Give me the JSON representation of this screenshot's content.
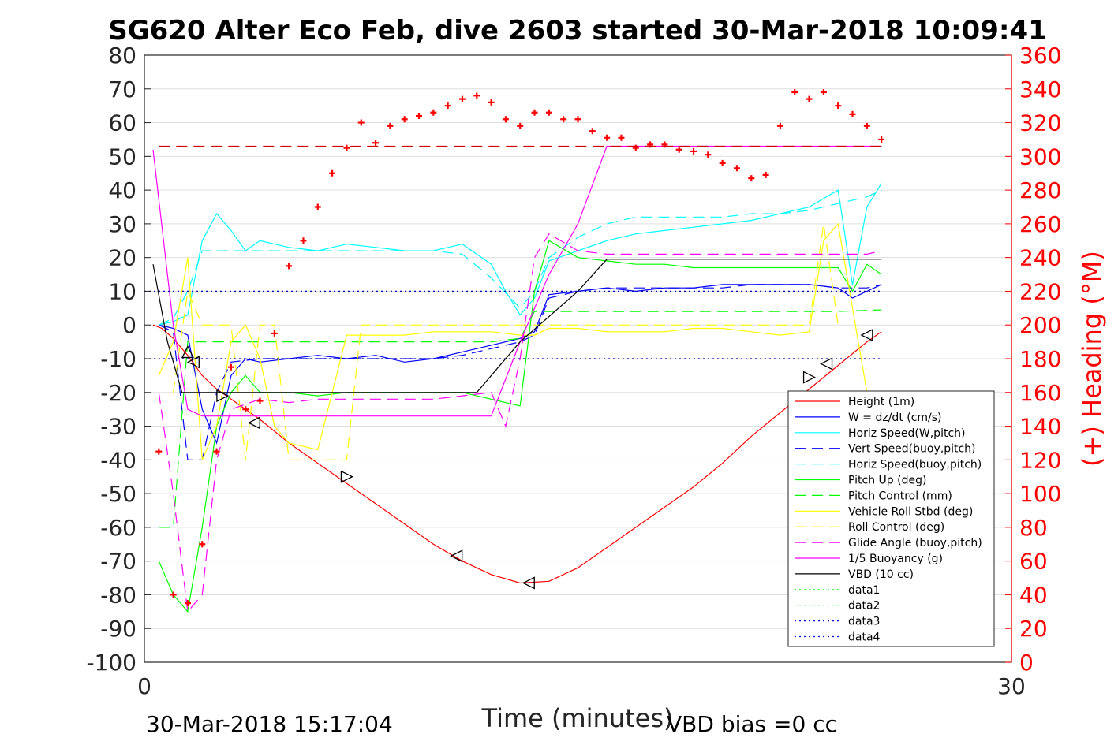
{
  "chart_data": {
    "type": "line",
    "title": "SG620 Alter Eco Feb, dive 2603 started 30-Mar-2018 10:09:41",
    "xlabel": "Time (minutes)",
    "ylabel_right": "(+) Heading (°M)",
    "xlim": [
      0,
      30
    ],
    "ylim": [
      -100,
      80
    ],
    "ylim_right": [
      0,
      360
    ],
    "xticks": [
      "0",
      "30"
    ],
    "yticks": [
      "80",
      "70",
      "60",
      "50",
      "40",
      "30",
      "20",
      "10",
      "0",
      "-10",
      "-20",
      "-30",
      "-40",
      "-50",
      "-60",
      "-70",
      "-80",
      "-90",
      "-100"
    ],
    "yticks_right": [
      "360",
      "340",
      "320",
      "300",
      "280",
      "260",
      "240",
      "220",
      "200",
      "180",
      "160",
      "140",
      "120",
      "100",
      "80",
      "60",
      "40",
      "20",
      "0"
    ],
    "grid": true,
    "legend_position": "lower-right",
    "footer_left": "30-Mar-2018 15:17:04",
    "footer_right": "VBD bias =0 cc",
    "colors": {
      "height": "#ff0000",
      "w": "#0000ff",
      "horiz_speed": "#00ffff",
      "vert_speed_buoy": "#0000ff",
      "horiz_speed_buoy": "#00ffff",
      "pitch_up": "#00ff00",
      "pitch_control": "#00ff00",
      "roll": "#ffff00",
      "roll_control": "#ffff00",
      "glide_angle": "#ff00ff",
      "buoyancy": "#ff00ff",
      "vbd": "#000000",
      "heading": "#ff0000"
    },
    "legend": [
      {
        "label": "Height (1m)",
        "color": "#ff0000",
        "style": "solid"
      },
      {
        "label": "W = dz/dt (cm/s)",
        "color": "#0000ff",
        "style": "solid"
      },
      {
        "label": "Horiz Speed(W,pitch)",
        "color": "#00ffff",
        "style": "solid"
      },
      {
        "label": "Vert Speed(buoy,pitch)",
        "color": "#0000ff",
        "style": "dashed"
      },
      {
        "label": "Horiz Speed(buoy,pitch)",
        "color": "#00ffff",
        "style": "dashed"
      },
      {
        "label": "Pitch Up (deg)",
        "color": "#00ff00",
        "style": "solid"
      },
      {
        "label": "Pitch Control (mm)",
        "color": "#00ff00",
        "style": "dashed"
      },
      {
        "label": "Vehicle Roll Stbd (deg)",
        "color": "#ffff00",
        "style": "solid"
      },
      {
        "label": "Roll Control (deg)",
        "color": "#ffff00",
        "style": "dashed"
      },
      {
        "label": "Glide Angle (buoy,pitch)",
        "color": "#ff00ff",
        "style": "dashed"
      },
      {
        "label": "1/5 Buoyancy (g)",
        "color": "#ff00ff",
        "style": "solid"
      },
      {
        "label": "VBD (10 cc)",
        "color": "#000000",
        "style": "solid"
      },
      {
        "label": "data1",
        "color": "#00ff00",
        "style": "dotted"
      },
      {
        "label": "data2",
        "color": "#00ff00",
        "style": "dotted"
      },
      {
        "label": "data3",
        "color": "#0000ff",
        "style": "dotted"
      },
      {
        "label": "data4",
        "color": "#0000ff",
        "style": "dotted"
      }
    ],
    "series": [
      {
        "key": "height",
        "axis": "left",
        "style": "solid",
        "x": [
          0.3,
          0.6,
          1.0,
          1.5,
          2.0,
          2.5,
          3.0,
          4.0,
          5.0,
          6.0,
          7.0,
          8.0,
          9.0,
          10.0,
          11.0,
          12.0,
          13.0,
          14.0,
          15.0,
          16.0,
          17.0,
          18.0,
          19.0,
          20.0,
          21.0,
          22.0,
          23.0,
          24.0,
          25.0,
          25.5
        ],
        "y": [
          0,
          -1,
          -4,
          -9,
          -15,
          -19,
          -22,
          -28,
          -35,
          -41,
          -47,
          -53,
          -59,
          -65,
          -70,
          -74,
          -76.5,
          -76,
          -72,
          -66,
          -60,
          -54,
          -48,
          -41,
          -33,
          -26,
          -19,
          -12,
          -5,
          -2
        ]
      },
      {
        "key": "w",
        "axis": "left",
        "style": "solid",
        "x": [
          0.5,
          1.0,
          1.5,
          2.0,
          2.5,
          3.0,
          3.5,
          4.0,
          5.0,
          6.0,
          7.0,
          8.0,
          9.0,
          10.0,
          11.0,
          12.0,
          13.0,
          13.5,
          14.0,
          15.0,
          16.0,
          17.0,
          18.0,
          19.0,
          20.0,
          21.0,
          22.0,
          23.0,
          24.0,
          24.5,
          25.0,
          25.5
        ],
        "y": [
          0,
          -1,
          -3,
          -25,
          -35,
          -15,
          -10,
          -11,
          -10,
          -9,
          -10,
          -9,
          -11,
          -10,
          -8,
          -6,
          -4,
          -2,
          9,
          10,
          11,
          10,
          11,
          11,
          12,
          12,
          12,
          12,
          11,
          8,
          10,
          12
        ]
      },
      {
        "key": "horiz_speed",
        "axis": "left",
        "style": "solid",
        "x": [
          0.5,
          1.0,
          1.5,
          2.0,
          2.5,
          3.0,
          3.5,
          4.0,
          5.0,
          6.0,
          7.0,
          8.0,
          9.0,
          10.0,
          11.0,
          12.0,
          12.5,
          13.0,
          13.5,
          14.0,
          15.0,
          16.0,
          17.0,
          18.0,
          19.0,
          20.0,
          21.0,
          22.0,
          23.0,
          24.0,
          24.5,
          25.0,
          25.5
        ],
        "y": [
          0,
          1,
          3,
          25,
          33,
          28,
          22,
          25,
          23,
          22,
          24,
          23,
          22,
          22,
          24,
          18,
          10,
          3,
          8,
          19,
          22,
          25,
          27,
          28,
          29,
          30,
          31,
          33,
          35,
          40,
          12,
          35,
          42
        ]
      },
      {
        "key": "vert_speed_buoy",
        "axis": "left",
        "style": "dashed",
        "x": [
          0.5,
          1.0,
          1.5,
          2.0,
          2.5,
          3.0,
          4.0,
          5.0,
          6.0,
          7.0,
          8.0,
          9.0,
          10.0,
          11.0,
          12.0,
          13.0,
          13.5,
          14.0,
          15.0,
          16.0,
          17.0,
          18.0,
          19.0,
          20.0,
          21.0,
          22.0,
          23.0,
          24.0,
          25.0,
          25.5
        ],
        "y": [
          0,
          -2,
          -40,
          -40,
          -20,
          -11,
          -10,
          -10,
          -10,
          -10,
          -10,
          -10,
          -10,
          -9,
          -7,
          -5,
          -3,
          8,
          10,
          11,
          11,
          11,
          11,
          11,
          12,
          12,
          12,
          11,
          11,
          12
        ]
      },
      {
        "key": "horiz_speed_buoy",
        "axis": "left",
        "style": "dashed",
        "x": [
          0.5,
          1.0,
          1.5,
          2.0,
          2.5,
          3.0,
          4.0,
          5.0,
          6.0,
          7.0,
          8.0,
          9.0,
          10.0,
          11.0,
          12.0,
          13.0,
          13.5,
          14.0,
          15.0,
          16.0,
          17.0,
          18.0,
          19.0,
          20.0,
          21.0,
          22.0,
          23.0,
          24.0,
          25.0,
          25.5
        ],
        "y": [
          0,
          2,
          10,
          22,
          22,
          22,
          22,
          22,
          22,
          22,
          22,
          22,
          22,
          21,
          14,
          5,
          10,
          20,
          26,
          30,
          32,
          32,
          32,
          32,
          33,
          33,
          34,
          36,
          38,
          40
        ]
      },
      {
        "key": "pitch_up",
        "axis": "left",
        "style": "solid",
        "x": [
          0.5,
          1.0,
          1.5,
          2.0,
          2.5,
          3.0,
          3.5,
          4.0,
          5.0,
          6.0,
          7.0,
          8.0,
          9.0,
          10.0,
          11.0,
          12.0,
          13.0,
          13.5,
          14.0,
          15.0,
          16.0,
          17.0,
          18.0,
          19.0,
          20.0,
          21.0,
          22.0,
          23.0,
          24.0,
          24.5,
          25.0,
          25.5
        ],
        "y": [
          -70,
          -80,
          -85,
          -60,
          -30,
          -20,
          -15,
          -20,
          -20,
          -21,
          -20,
          -20,
          -20,
          -20,
          -20,
          -22,
          -24,
          10,
          25,
          20,
          19,
          18,
          18,
          17,
          17,
          17,
          17,
          17,
          17,
          10,
          18,
          15
        ]
      },
      {
        "key": "pitch_control",
        "axis": "left",
        "style": "dashed",
        "x": [
          0.5,
          1.0,
          1.5,
          2.0,
          3.0,
          4.0,
          6.0,
          8.0,
          10.0,
          12.0,
          13.0,
          13.5,
          14.0,
          16.0,
          18.0,
          20.0,
          22.0,
          24.0,
          25.5
        ],
        "y": [
          -60,
          -60,
          -5,
          -5,
          -5,
          -5,
          -5,
          -5,
          -5,
          -5,
          -4,
          4,
          4,
          4,
          4,
          4,
          4,
          4,
          4.5
        ]
      },
      {
        "key": "roll",
        "axis": "left",
        "style": "solid",
        "x": [
          0.5,
          1.0,
          1.5,
          2.0,
          2.5,
          3.0,
          3.5,
          4.0,
          4.5,
          5.0,
          6.0,
          7.0,
          8.0,
          9.0,
          10.0,
          11.0,
          12.0,
          13.0,
          13.5,
          14.0,
          15.0,
          16.0,
          17.0,
          18.0,
          19.0,
          20.0,
          21.0,
          22.0,
          23.0,
          23.5,
          24.0,
          24.5,
          25.0
        ],
        "y": [
          -15,
          -5,
          20,
          -40,
          -30,
          -5,
          0,
          -10,
          -30,
          -35,
          -37,
          -3,
          -3,
          -3,
          -2,
          -2,
          -2,
          -3,
          -3,
          -1,
          -1,
          -2,
          -2,
          -2,
          -1,
          -1,
          -2,
          -3,
          -2,
          25,
          30,
          5,
          -20
        ]
      },
      {
        "key": "roll_control",
        "axis": "left",
        "style": "dashed",
        "x": [
          1.0,
          1.5,
          2.0,
          3.0,
          3.5,
          4.0,
          4.5,
          5.0,
          6.0,
          7.0,
          7.5,
          8.0,
          10.0,
          12.0,
          13.0,
          13.5,
          14.0,
          16.0,
          18.0,
          20.0,
          22.0,
          23.0,
          23.5,
          24.0
        ],
        "y": [
          -20,
          10,
          0,
          0,
          -40,
          0,
          0,
          -40,
          -40,
          -40,
          0,
          0,
          0,
          0,
          0,
          0,
          0,
          0,
          0,
          0,
          0,
          0,
          30,
          0
        ]
      },
      {
        "key": "glide_angle",
        "axis": "left",
        "style": "dashed",
        "x": [
          0.5,
          1.0,
          1.5,
          2.0,
          2.5,
          3.0,
          4.0,
          5.0,
          6.0,
          7.0,
          8.0,
          9.0,
          10.0,
          11.0,
          12.0,
          12.5,
          13.0,
          13.5,
          14.0,
          15.0,
          16.0,
          17.0,
          18.0,
          19.0,
          20.0,
          21.0,
          22.0,
          23.0,
          24.0,
          25.0,
          25.5
        ],
        "y": [
          -20,
          -50,
          -85,
          -80,
          -40,
          -25,
          -22,
          -23,
          -22,
          -22,
          -22,
          -22,
          -22,
          -21,
          -20,
          -30,
          -10,
          20,
          27,
          22,
          21,
          21,
          21,
          21,
          21,
          21,
          21,
          21,
          21,
          21,
          22
        ]
      },
      {
        "key": "buoyancy",
        "axis": "left",
        "style": "solid",
        "x": [
          0.3,
          1.0,
          1.5,
          2.0,
          2.5,
          3.0,
          4.0,
          6.0,
          8.0,
          10.0,
          12.0,
          13.0,
          14.0,
          15.0,
          16.0,
          17.0,
          18.0,
          20.0,
          22.0,
          24.0,
          25.5
        ],
        "y": [
          52,
          0,
          -25,
          -27,
          -27,
          -27,
          -27,
          -27,
          -27,
          -27,
          -27,
          -5,
          15,
          30,
          53,
          53,
          53,
          53,
          53,
          53,
          53
        ]
      },
      {
        "key": "vbd",
        "axis": "left",
        "style": "solid",
        "x": [
          0.3,
          0.8,
          1.3,
          2.0,
          3.0,
          5.0,
          8.0,
          10.0,
          11.5,
          13.0,
          15.0,
          16.0,
          18.0,
          20.0,
          22.0,
          24.0,
          25.5
        ],
        "y": [
          18,
          -5,
          -20,
          -20,
          -20,
          -20,
          -20,
          -20,
          -20,
          -5,
          10,
          19.5,
          19.5,
          19.5,
          19.5,
          19.5,
          19.5
        ]
      },
      {
        "key": "heading",
        "axis": "right",
        "style": "markers",
        "marker": "+",
        "x": [
          0.5,
          1.0,
          1.5,
          2.0,
          2.5,
          3.0,
          3.5,
          4.0,
          4.5,
          5.0,
          5.5,
          6.0,
          6.5,
          7.0,
          7.5,
          8.0,
          8.5,
          9.0,
          9.5,
          10.0,
          10.5,
          11.0,
          11.5,
          12.0,
          12.5,
          13.0,
          13.5,
          14.0,
          14.5,
          15.0,
          15.5,
          16.0,
          16.5,
          17.0,
          17.5,
          18.0,
          18.5,
          19.0,
          19.5,
          20.0,
          20.5,
          21.0,
          21.5,
          22.0,
          22.5,
          23.0,
          23.5,
          24.0,
          24.5,
          25.0,
          25.5
        ],
        "y": [
          125,
          40,
          35,
          70,
          125,
          175,
          150,
          155,
          195,
          235,
          250,
          270,
          290,
          305,
          320,
          308,
          318,
          322,
          324,
          326,
          330,
          334,
          336,
          332,
          322,
          318,
          326,
          326,
          322,
          322,
          315,
          311,
          311,
          305,
          307,
          307,
          304,
          303,
          301,
          296,
          293,
          287,
          289,
          318,
          338,
          334,
          338,
          330,
          325,
          318,
          310
        ]
      },
      {
        "key": "data3",
        "axis": "left",
        "style": "dotted",
        "x": [
          0,
          25.5
        ],
        "y": [
          10,
          10
        ]
      },
      {
        "key": "data4",
        "axis": "left",
        "style": "dotted",
        "x": [
          0,
          25.5
        ],
        "y": [
          -10,
          -10
        ]
      },
      {
        "key": "heading_ref",
        "axis": "right",
        "style": "dashed",
        "x": [
          0.5,
          25.5
        ],
        "y": [
          306,
          306
        ]
      }
    ],
    "triangles": [
      {
        "x": 1.5,
        "y": -8,
        "dir": "up"
      },
      {
        "x": 1.7,
        "y": -11,
        "dir": "left"
      },
      {
        "x": 2.7,
        "y": -21,
        "dir": "right"
      },
      {
        "x": 3.8,
        "y": -29,
        "dir": "left"
      },
      {
        "x": 7.0,
        "y": -45,
        "dir": "right"
      },
      {
        "x": 10.8,
        "y": -68.5,
        "dir": "left"
      },
      {
        "x": 13.3,
        "y": -76.5,
        "dir": "left"
      },
      {
        "x": 23.0,
        "y": -15.5,
        "dir": "right"
      },
      {
        "x": 23.6,
        "y": -11.5,
        "dir": "left"
      },
      {
        "x": 25.0,
        "y": -3,
        "dir": "left"
      }
    ]
  }
}
